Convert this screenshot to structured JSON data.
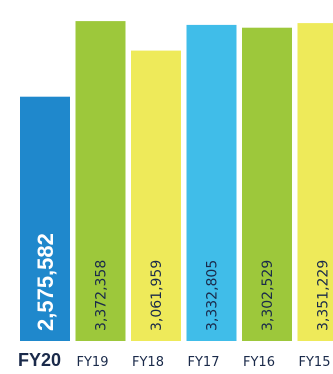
{
  "chart_data": {
    "type": "bar",
    "categories": [
      "FY20",
      "FY19",
      "FY18",
      "FY17",
      "FY16",
      "FY15"
    ],
    "values": [
      2575582,
      3372358,
      3061959,
      3332805,
      3302529,
      3351229
    ],
    "value_labels": [
      "2,575,582",
      "3,372,358",
      "3,061,959",
      "3,332,805",
      "3,302,529",
      "3,351,229"
    ],
    "highlight_category": "FY20",
    "colors": [
      "#1f88cc",
      "#9dc83b",
      "#eeea5a",
      "#40bde9",
      "#9dc83b",
      "#eeea5a"
    ],
    "label_colors": [
      "#ffffff",
      "#1a2a4a",
      "#1a2a4a",
      "#1a2a4a",
      "#1a2a4a",
      "#1a2a4a"
    ],
    "tick_color": "#1a2a4a",
    "ylim": [
      0,
      3500000
    ],
    "grid": false,
    "title": "",
    "xlabel": "",
    "ylabel": ""
  }
}
